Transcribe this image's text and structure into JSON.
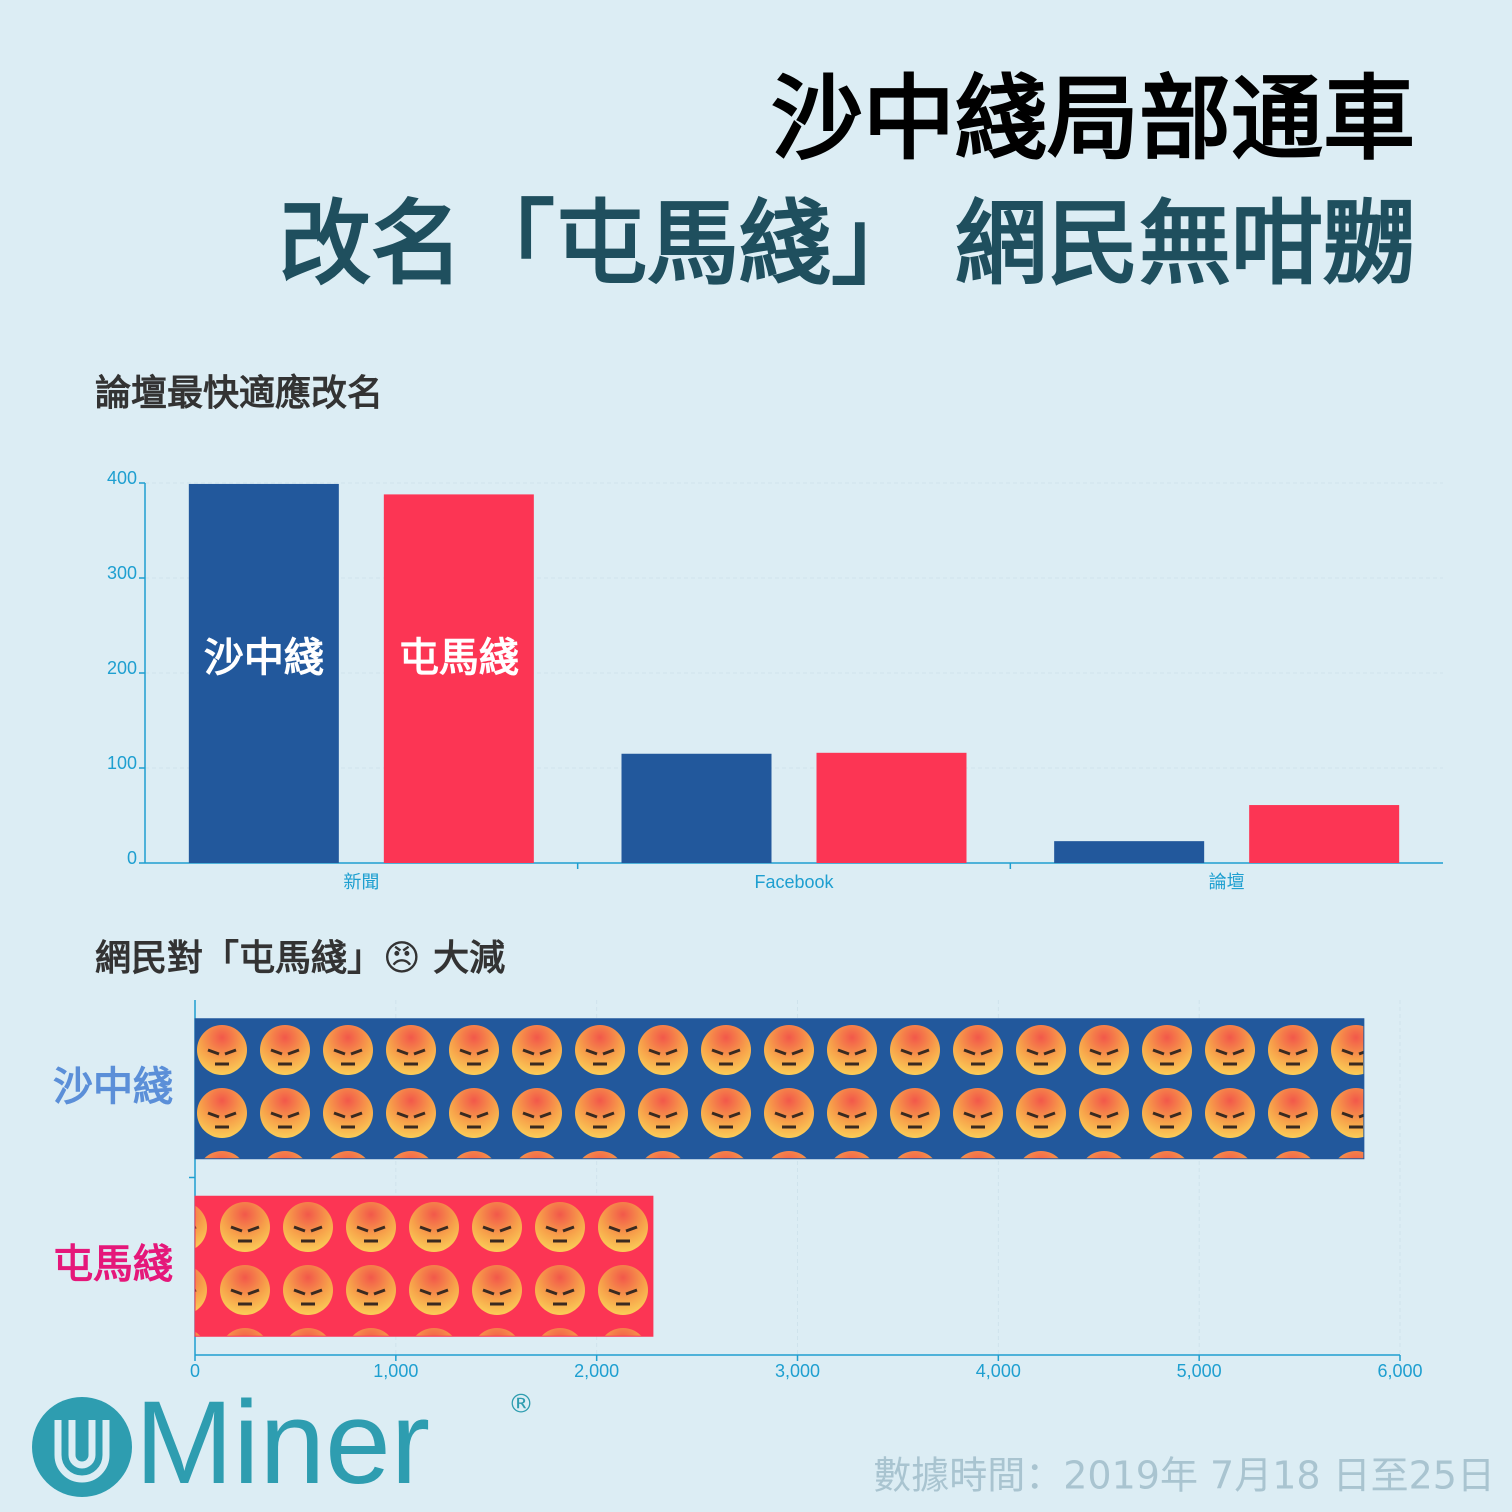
{
  "header": {
    "title_line1": "沙中綫局部通車",
    "title_line2": "改名「屯馬綫」 網民無咁嬲"
  },
  "chart_data": [
    {
      "type": "bar",
      "orientation": "vertical",
      "title": "論壇最快適應改名",
      "categories": [
        "新聞",
        "Facebook",
        "論壇"
      ],
      "series": [
        {
          "name": "沙中綫",
          "color": "#22589c",
          "values": [
            399,
            115,
            23
          ]
        },
        {
          "name": "屯馬綫",
          "color": "#fc3554",
          "values": [
            388,
            116,
            61
          ]
        }
      ],
      "ylim": [
        0,
        400
      ],
      "yticks": [
        0,
        100,
        200,
        300,
        400
      ],
      "grid": true
    },
    {
      "type": "bar",
      "orientation": "horizontal",
      "title": "網民對「屯馬綫」😠 大減",
      "categories": [
        "沙中綫",
        "屯馬綫"
      ],
      "category_colors": [
        "#5b8fd8",
        "#e5177a"
      ],
      "values": [
        5820,
        2280
      ],
      "bar_colors": [
        "#22589c",
        "#fc3554"
      ],
      "xlim": [
        0,
        6000
      ],
      "xticks": [
        0,
        {
          "value": 1000,
          "label": "1,000"
        },
        {
          "value": 2000,
          "label": "2,000"
        },
        {
          "value": 3000,
          "label": "3,000"
        },
        {
          "value": 4000,
          "label": "4,000"
        },
        {
          "value": 5000,
          "label": "5,000"
        },
        {
          "value": 6000,
          "label": "6,000"
        }
      ],
      "grid": true
    }
  ],
  "logo": {
    "text": "Miner",
    "mark": "®"
  },
  "footer": {
    "source": "數據時間：2019年 7月18 日至25日"
  }
}
